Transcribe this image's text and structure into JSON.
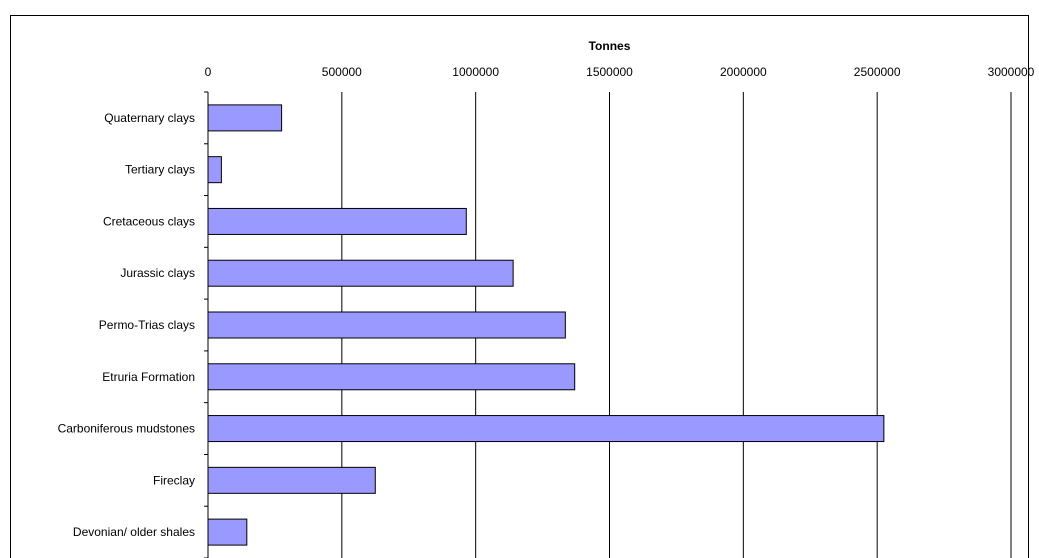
{
  "chart_data": {
    "type": "bar",
    "orientation": "horizontal",
    "title": "",
    "xlabel": "Tonnes",
    "ylabel": "",
    "xlim": [
      0,
      3000000
    ],
    "x_ticks": [
      0,
      500000,
      1000000,
      1500000,
      2000000,
      2500000,
      3000000
    ],
    "x_tick_labels": [
      "0",
      "500000",
      "1000000",
      "1500000",
      "2000000",
      "2500000",
      "3000000"
    ],
    "x_axis_position": "top",
    "grid": true,
    "legend": "none",
    "bar_color": "#9999ff",
    "categories": [
      "Quaternary clays",
      "Tertiary clays",
      "Cretaceous clays",
      "Jurassic clays",
      "Permo-Trias clays",
      "Etruria Formation",
      "Carboniferous mudstones",
      "Fireclay",
      "Devonian/ older shales"
    ],
    "values": [
      275000,
      50000,
      965000,
      1140000,
      1335000,
      1370000,
      2525000,
      625000,
      145000
    ]
  }
}
